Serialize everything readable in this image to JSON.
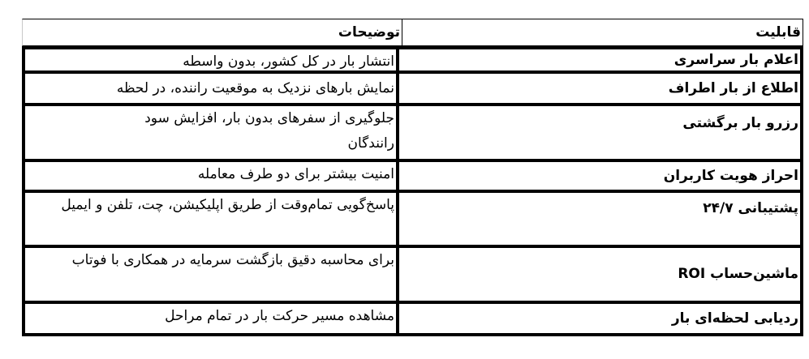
{
  "table": {
    "headers": {
      "capability": "قابلیت",
      "description": "توضیحات"
    },
    "rows": [
      {
        "capability": "اعلام بار سراسری",
        "description": "انتشار بار در کل کشور، بدون واسطه"
      },
      {
        "capability": "اطلاع از بار اطراف",
        "description": "نمایش بارهای نزدیک به موقعیت راننده، در لحظه"
      },
      {
        "capability": "رزرو بار برگشتی",
        "description": "جلوگیری از سفرهای بدون بار، افزایش سود رانندگان"
      },
      {
        "capability": "احراز هویت کاربران",
        "description": "امنیت بیشتر برای دو طرف معامله"
      },
      {
        "capability": "پشتیبانی ۲۴/۷",
        "description": "پاسخ‌گویی تمام‌وقت از طریق اپلیکیشن، چت، تلفن و ایمیل"
      },
      {
        "capability": "ماشین‌حساب ROI",
        "description": "برای محاسبه دقیق بازگشت سرمایه در همکاری با فوتاب"
      },
      {
        "capability": "ردیابی لحظه‌ای بار",
        "description": "مشاهده مسیر حرکت بار در تمام مراحل"
      }
    ]
  }
}
